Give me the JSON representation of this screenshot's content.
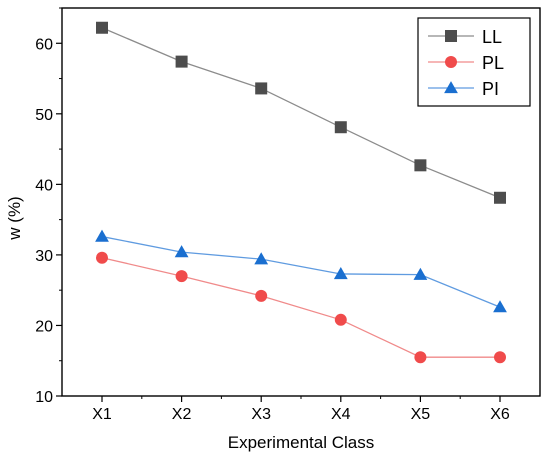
{
  "chart_data": {
    "type": "line",
    "title": "",
    "xlabel": "Experimental Class",
    "ylabel": "w (%)",
    "categories": [
      "X1",
      "X2",
      "X3",
      "X4",
      "X5",
      "X6"
    ],
    "ylim": [
      10,
      65
    ],
    "yticks": [
      10,
      20,
      30,
      40,
      50,
      60
    ],
    "grid": false,
    "legend_position": "top-right",
    "series": [
      {
        "name": "LL",
        "marker": "square",
        "color": "#4d4d4d",
        "line_color": "#8c8c8c",
        "values": [
          62.2,
          57.4,
          53.6,
          48.1,
          42.7,
          38.1
        ]
      },
      {
        "name": "PL",
        "marker": "circle",
        "color": "#f04b4b",
        "line_color": "#f08a8a",
        "values": [
          29.6,
          27.0,
          24.2,
          20.8,
          15.5,
          15.5
        ]
      },
      {
        "name": "PI",
        "marker": "triangle",
        "color": "#1a6fd0",
        "line_color": "#5f9be0",
        "values": [
          32.6,
          30.4,
          29.4,
          27.3,
          27.2,
          22.6
        ]
      }
    ]
  }
}
